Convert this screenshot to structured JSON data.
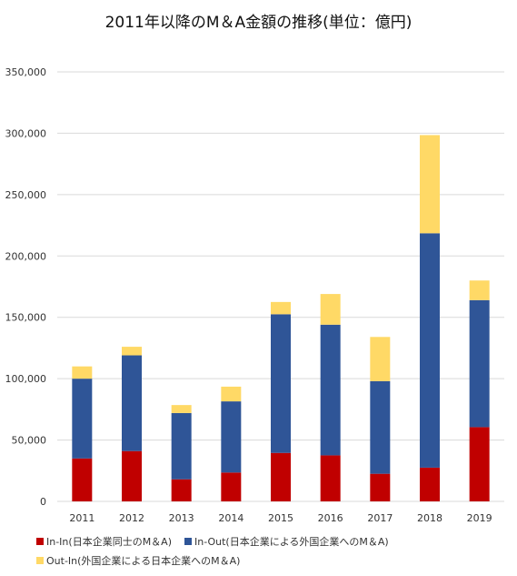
{
  "chart_data": {
    "type": "bar",
    "stacked": true,
    "title": "2011年以降のM＆A金額の推移(単位：億円)",
    "xlabel": "",
    "ylabel": "",
    "categories": [
      "2011",
      "2012",
      "2013",
      "2014",
      "2015",
      "2016",
      "2017",
      "2018",
      "2019"
    ],
    "ylim": [
      0,
      350000
    ],
    "yticks": [
      0,
      50000,
      100000,
      150000,
      200000,
      250000,
      300000,
      350000
    ],
    "ytick_labels": [
      "0",
      "50,000",
      "100,000",
      "150,000",
      "200,000",
      "250,000",
      "300,000",
      "350,000"
    ],
    "grid": true,
    "legend_position": "bottom",
    "series": [
      {
        "name": "In-In(日本企業同士のM＆A)",
        "color": "#c00000",
        "values": [
          35000,
          41000,
          18000,
          23500,
          39500,
          37500,
          22500,
          27500,
          60500
        ]
      },
      {
        "name": "In-Out(日本企業による外国企業へのM＆A)",
        "color": "#2f5597",
        "values": [
          65000,
          78000,
          54000,
          58000,
          113000,
          106500,
          75500,
          191000,
          103500
        ]
      },
      {
        "name": "Out-In(外国企業による日本企業へのM＆A)",
        "color": "#ffd966",
        "values": [
          10000,
          7000,
          6500,
          12000,
          10000,
          25000,
          36000,
          80000,
          16000
        ]
      }
    ]
  }
}
